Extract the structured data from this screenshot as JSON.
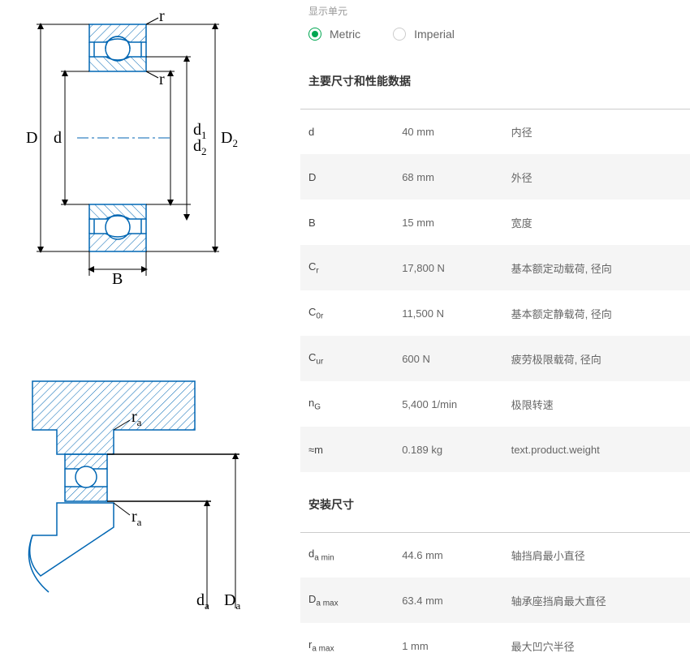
{
  "units": {
    "label": "显示单元",
    "metric": "Metric",
    "imperial": "Imperial",
    "selected": "metric"
  },
  "sections": {
    "main": {
      "title": "主要尺寸和性能数据",
      "rows": [
        {
          "sym": "d",
          "sub": "",
          "val": "40 mm",
          "desc": "内径"
        },
        {
          "sym": "D",
          "sub": "",
          "val": "68 mm",
          "desc": "外径"
        },
        {
          "sym": "B",
          "sub": "",
          "val": "15 mm",
          "desc": "宽度"
        },
        {
          "sym": "C",
          "sub": "r",
          "val": "17,800 N",
          "desc": "基本额定动载荷, 径向"
        },
        {
          "sym": "C",
          "sub": "0r",
          "val": "11,500 N",
          "desc": "基本额定静载荷, 径向"
        },
        {
          "sym": "C",
          "sub": "ur",
          "val": "600 N",
          "desc": "疲劳极限载荷, 径向"
        },
        {
          "sym": "n",
          "sub": "G",
          "val": "5,400 1/min",
          "desc": "极限转速"
        },
        {
          "sym": "≈m",
          "sub": "",
          "val": "0.189 kg",
          "desc": "text.product.weight"
        }
      ]
    },
    "mount": {
      "title": "安装尺寸",
      "rows": [
        {
          "sym": "d",
          "sub": "a min",
          "val": "44.6 mm",
          "desc": "轴挡肩最小直径"
        },
        {
          "sym": "D",
          "sub": "a max",
          "val": "63.4 mm",
          "desc": "轴承座挡肩最大直径"
        },
        {
          "sym": "r",
          "sub": "a max",
          "val": "1 mm",
          "desc": "最大凹穴半径"
        }
      ]
    }
  },
  "diagram": {
    "labels": {
      "D": "D",
      "d": "d",
      "d1": "d",
      "d1_sub": "1",
      "d2": "d",
      "d2_sub": "2",
      "D2": "D",
      "D2_sub": "2",
      "B": "B",
      "r": "r",
      "ra": "r",
      "ra_sub": "a",
      "da": "d",
      "da_sub": "a",
      "Da": "D",
      "Da_sub": "a"
    },
    "colors": {
      "stroke": "#0066b3",
      "hatch": "#0066b3",
      "centerline": "#0066b3",
      "dimline": "#000000",
      "text": "#000000"
    }
  }
}
